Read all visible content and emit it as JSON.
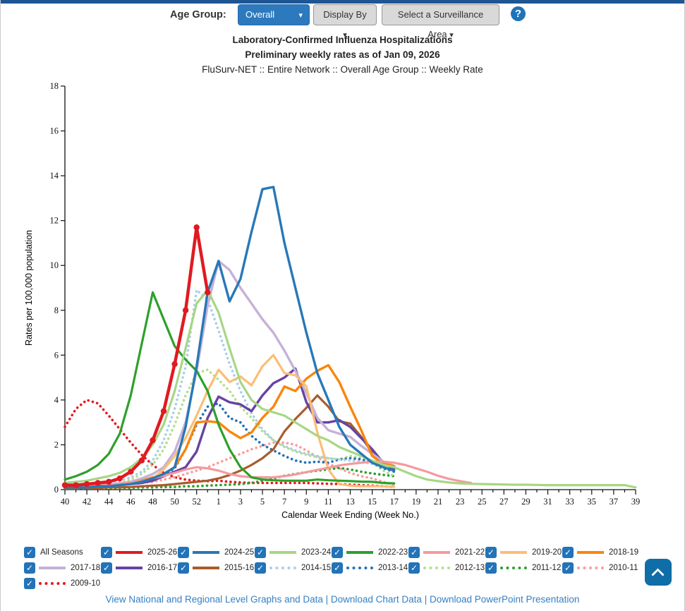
{
  "page": {
    "top_strip_color": "#1e5593"
  },
  "header": {
    "age_group_label": "Age Group:",
    "age_group_value": "Overall",
    "age_group_caret": "▾",
    "display_by_label": "Display By",
    "surveillance_label": "Select a Surveillance Area",
    "caret": "▾",
    "help_glyph": "?"
  },
  "titles": {
    "line1": "Laboratory-Confirmed Influenza Hospitalizations",
    "line2": "Preliminary weekly rates as of Jan 09, 2026",
    "line3": "FluSurv-NET :: Entire Network :: Overall Age Group :: Weekly Rate"
  },
  "chart_data": {
    "type": "line",
    "title": "Laboratory-Confirmed Influenza Hospitalizations",
    "subtitle": "Preliminary weekly rates as of Jan 09, 2026",
    "xlabel": "Calendar Week Ending (Week No.)",
    "ylabel": "Rates per 100,000 population",
    "ylim": [
      0,
      18
    ],
    "ytick_step": 2,
    "grid": false,
    "legend_position": "bottom",
    "categories": [
      "40",
      "41",
      "42",
      "43",
      "44",
      "45",
      "46",
      "47",
      "48",
      "49",
      "50",
      "51",
      "52",
      "53",
      "1",
      "2",
      "3",
      "4",
      "5",
      "6",
      "7",
      "8",
      "9",
      "10",
      "11",
      "12",
      "13",
      "14",
      "15",
      "16",
      "17",
      "18",
      "19",
      "20",
      "21",
      "22",
      "23",
      "24",
      "25",
      "26",
      "27",
      "28",
      "29",
      "30",
      "31",
      "32",
      "33",
      "34",
      "35",
      "36",
      "37",
      "38",
      "39"
    ],
    "series": [
      {
        "name": "2025-26",
        "color": "#e01a22",
        "style": "solid",
        "width": 4.5,
        "marker": true,
        "values": [
          0.2,
          0.2,
          0.25,
          0.3,
          0.35,
          0.5,
          0.8,
          1.3,
          2.2,
          3.5,
          5.6,
          8.0,
          11.7,
          8.8
        ]
      },
      {
        "name": "2024-25",
        "color": "#2878b8",
        "style": "solid",
        "width": 3.4,
        "marker": false,
        "values": [
          0.1,
          0.1,
          0.1,
          0.15,
          0.15,
          0.2,
          0.25,
          0.35,
          0.5,
          0.7,
          1.0,
          2.8,
          5.5,
          8.8,
          10.2,
          8.4,
          9.4,
          11.5,
          13.4,
          13.5,
          11.0,
          9.0,
          7.0,
          5.2,
          4.0,
          2.8,
          2.0,
          1.6,
          1.2,
          1.0,
          0.85
        ]
      },
      {
        "name": "2023-24",
        "color": "#a6d785",
        "style": "solid",
        "width": 3.2,
        "marker": false,
        "values": [
          0.3,
          0.35,
          0.4,
          0.5,
          0.6,
          0.75,
          1.0,
          1.4,
          2.0,
          2.9,
          4.4,
          6.3,
          8.3,
          8.9,
          7.9,
          6.3,
          4.8,
          4.0,
          3.6,
          3.45,
          3.3,
          3.0,
          2.7,
          2.4,
          2.2,
          1.9,
          1.7,
          1.5,
          1.3,
          1.1,
          1.0,
          0.8,
          0.6,
          0.45,
          0.38,
          0.32,
          0.28,
          0.26,
          0.25,
          0.24,
          0.23,
          0.22,
          0.22,
          0.21,
          0.2,
          0.2,
          0.2,
          0.2,
          0.2,
          0.2,
          0.2,
          0.2,
          0.1
        ]
      },
      {
        "name": "2022-23",
        "color": "#2da02c",
        "style": "solid",
        "width": 3.2,
        "marker": false,
        "values": [
          0.45,
          0.6,
          0.8,
          1.1,
          1.6,
          2.5,
          4.2,
          6.5,
          8.8,
          7.6,
          6.4,
          5.8,
          5.3,
          4.4,
          2.9,
          1.8,
          1.0,
          0.55,
          0.45,
          0.42,
          0.4,
          0.4,
          0.4,
          0.45,
          0.42,
          0.4,
          0.38,
          0.36,
          0.35,
          0.3,
          0.28
        ]
      },
      {
        "name": "2021-22",
        "color": "#f59a9e",
        "style": "solid",
        "width": 3.2,
        "marker": false,
        "values": [
          0.15,
          0.15,
          0.18,
          0.2,
          0.22,
          0.25,
          0.3,
          0.38,
          0.5,
          0.62,
          0.75,
          0.9,
          1.0,
          0.95,
          0.85,
          0.7,
          0.6,
          0.55,
          0.55,
          0.55,
          0.6,
          0.68,
          0.78,
          0.88,
          0.98,
          1.08,
          1.15,
          1.2,
          1.25,
          1.25,
          1.2,
          1.1,
          0.95,
          0.8,
          0.62,
          0.48,
          0.38,
          0.3
        ]
      },
      {
        "name": "2019-20",
        "color": "#fbbe76",
        "style": "solid",
        "width": 3.2,
        "marker": false,
        "values": [
          0.1,
          0.1,
          0.12,
          0.15,
          0.18,
          0.2,
          0.25,
          0.35,
          0.5,
          0.9,
          1.5,
          2.3,
          3.3,
          4.4,
          5.35,
          4.8,
          5.05,
          4.65,
          5.5,
          6.0,
          5.2,
          5.1,
          4.6,
          2.55,
          0.9,
          0.25,
          0.18,
          0.15,
          0.15,
          0.15,
          0.12
        ]
      },
      {
        "name": "2018-19",
        "color": "#f8860d",
        "style": "solid",
        "width": 3.4,
        "marker": false,
        "values": [
          0.1,
          0.12,
          0.15,
          0.18,
          0.2,
          0.25,
          0.3,
          0.4,
          0.55,
          0.7,
          1.0,
          1.8,
          3.0,
          3.05,
          3.0,
          2.6,
          2.3,
          2.55,
          3.2,
          3.7,
          4.6,
          4.4,
          4.95,
          5.3,
          5.55,
          4.8,
          3.7,
          2.65,
          1.5,
          1.15,
          1.05
        ]
      },
      {
        "name": "2017-18",
        "color": "#c6b1d8",
        "style": "solid",
        "width": 3.4,
        "marker": false,
        "values": [
          0.1,
          0.12,
          0.15,
          0.18,
          0.22,
          0.28,
          0.35,
          0.5,
          0.7,
          1.0,
          1.7,
          3.0,
          5.3,
          8.2,
          10.2,
          9.8,
          9.0,
          8.3,
          7.6,
          7.0,
          6.2,
          5.3,
          4.3,
          3.2,
          2.65,
          2.5,
          2.35,
          1.95,
          1.6,
          1.25,
          1.05
        ]
      },
      {
        "name": "2016-17",
        "color": "#6742a2",
        "style": "solid",
        "width": 3.4,
        "marker": false,
        "values": [
          0.1,
          0.1,
          0.12,
          0.15,
          0.18,
          0.2,
          0.25,
          0.3,
          0.4,
          0.6,
          0.8,
          1.0,
          1.7,
          3.2,
          4.15,
          3.9,
          3.8,
          3.5,
          4.2,
          4.75,
          5.0,
          5.4,
          3.9,
          3.0,
          3.0,
          3.1,
          2.8,
          2.3,
          1.8,
          1.2,
          0.9
        ]
      },
      {
        "name": "2015-16",
        "color": "#a85c2b",
        "style": "solid",
        "width": 3.2,
        "marker": false,
        "values": [
          0.05,
          0.05,
          0.08,
          0.08,
          0.1,
          0.1,
          0.12,
          0.15,
          0.18,
          0.2,
          0.25,
          0.3,
          0.35,
          0.4,
          0.5,
          0.65,
          0.85,
          1.1,
          1.4,
          1.8,
          2.6,
          3.15,
          3.65,
          4.2,
          3.7,
          3.05,
          2.95,
          2.35,
          1.65,
          1.25,
          1.05
        ]
      },
      {
        "name": "2014-15",
        "color": "#a9cfe8",
        "style": "dotted",
        "width": 3.6,
        "marker": false,
        "values": [
          0.15,
          0.18,
          0.2,
          0.25,
          0.3,
          0.4,
          0.55,
          0.8,
          1.3,
          2.2,
          3.6,
          5.5,
          8.9,
          8.5,
          7.1,
          5.6,
          4.4,
          3.4,
          2.7,
          2.2,
          1.95,
          1.75,
          1.6,
          1.5,
          1.4,
          1.35,
          1.3,
          1.25,
          1.15,
          1.05,
          1.0
        ]
      },
      {
        "name": "2013-14",
        "color": "#2271b5",
        "style": "dotted",
        "width": 3.6,
        "marker": false,
        "values": [
          0.1,
          0.1,
          0.12,
          0.15,
          0.18,
          0.2,
          0.25,
          0.3,
          0.45,
          0.65,
          0.95,
          1.8,
          2.9,
          3.7,
          3.85,
          3.2,
          3.0,
          2.4,
          2.0,
          1.75,
          1.5,
          1.3,
          1.2,
          1.25,
          1.2,
          1.35,
          1.4,
          1.35,
          1.2,
          0.95,
          0.8
        ]
      },
      {
        "name": "2012-13",
        "color": "#b5df8e",
        "style": "dotted",
        "width": 3.6,
        "marker": false,
        "values": [
          0.1,
          0.12,
          0.15,
          0.2,
          0.25,
          0.3,
          0.45,
          0.7,
          1.1,
          1.8,
          2.9,
          4.2,
          5.2,
          5.35,
          4.9,
          4.4,
          3.7,
          3.2,
          2.6,
          2.2,
          1.9,
          1.7,
          1.55,
          1.45,
          1.4,
          1.35,
          1.5,
          1.4,
          1.2,
          0.85,
          0.6
        ]
      },
      {
        "name": "2011-12",
        "color": "#2f9e30",
        "style": "dotted",
        "width": 3.6,
        "marker": false,
        "values": [
          0.05,
          0.05,
          0.05,
          0.06,
          0.07,
          0.08,
          0.08,
          0.1,
          0.1,
          0.12,
          0.12,
          0.15,
          0.15,
          0.18,
          0.2,
          0.22,
          0.25,
          0.3,
          0.4,
          0.5,
          0.62,
          0.7,
          0.78,
          0.85,
          0.9,
          0.97,
          0.9,
          0.8,
          0.72,
          0.66,
          0.6
        ]
      },
      {
        "name": "2010-11",
        "color": "#f99c9c",
        "style": "dotted",
        "width": 3.6,
        "marker": false,
        "values": [
          0.1,
          0.1,
          0.12,
          0.15,
          0.18,
          0.2,
          0.25,
          0.3,
          0.35,
          0.45,
          0.55,
          0.7,
          0.85,
          1.0,
          1.2,
          1.4,
          1.6,
          1.8,
          1.95,
          2.1,
          2.1,
          2.0,
          1.75,
          1.45,
          1.15,
          0.95,
          0.75,
          0.6,
          0.5,
          0.35,
          0.2
        ]
      },
      {
        "name": "2009-10",
        "color": "#e3181d",
        "style": "dotted",
        "width": 3.6,
        "marker": false,
        "values": [
          2.8,
          3.6,
          4.0,
          3.85,
          3.3,
          2.7,
          2.1,
          1.55,
          1.1,
          0.75,
          0.55,
          0.45,
          0.4,
          0.38,
          0.4,
          0.35,
          0.32,
          0.3,
          0.3,
          0.3,
          0.3,
          0.3,
          0.3,
          0.28,
          0.26,
          0.25,
          0.22,
          0.2,
          0.18,
          0.15,
          0.12
        ]
      }
    ]
  },
  "legend": {
    "items": [
      {
        "label": "All Seasons",
        "series": null
      },
      {
        "label": "2025-26",
        "series": "2025-26"
      },
      {
        "label": "2024-25",
        "series": "2024-25"
      },
      {
        "label": "2023-24",
        "series": "2023-24"
      },
      {
        "label": "2022-23",
        "series": "2022-23"
      },
      {
        "label": "2021-22",
        "series": "2021-22"
      },
      {
        "label": "2019-20",
        "series": "2019-20"
      },
      {
        "label": "2018-19",
        "series": "2018-19"
      },
      {
        "label": "2017-18",
        "series": "2017-18"
      },
      {
        "label": "2016-17",
        "series": "2016-17"
      },
      {
        "label": "2015-16",
        "series": "2015-16"
      },
      {
        "label": "2014-15",
        "series": "2014-15"
      },
      {
        "label": "2013-14",
        "series": "2013-14"
      },
      {
        "label": "2012-13",
        "series": "2012-13"
      },
      {
        "label": "2011-12",
        "series": "2011-12"
      },
      {
        "label": "2010-11",
        "series": "2010-11"
      },
      {
        "label": "2009-10",
        "series": "2009-10"
      }
    ]
  },
  "footer": {
    "links": [
      "View National and Regional Level Graphs and Data",
      "Download Chart Data",
      "Download PowerPoint Presentation"
    ],
    "separator": "|"
  }
}
